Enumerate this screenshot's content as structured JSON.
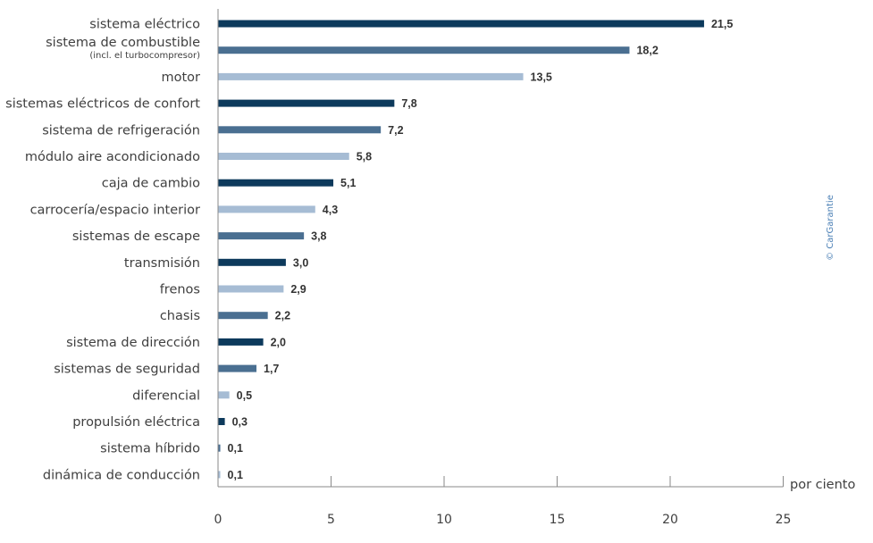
{
  "chart_data": {
    "type": "bar",
    "orientation": "horizontal",
    "categories": [
      "sistema eléctrico",
      "sistema de combustible",
      "motor",
      "sistemas eléctricos de confort",
      "sistema de refrigeración",
      "módulo aire acondicionado",
      "caja de cambio",
      "carrocería/espacio interior",
      "sistemas de escape",
      "transmisión",
      "frenos",
      "chasis",
      "sistema de dirección",
      "sistemas de seguridad",
      "diferencial",
      "propulsión eléctrica",
      "sistema híbrido",
      "dinámica de conducción"
    ],
    "category_subtitles": [
      "",
      "(incl. el turbocompresor)",
      "",
      "",
      "",
      "",
      "",
      "",
      "",
      "",
      "",
      "",
      "",
      "",
      "",
      "",
      "",
      ""
    ],
    "values": [
      21.5,
      18.2,
      13.5,
      7.8,
      7.2,
      5.8,
      5.1,
      4.3,
      3.8,
      3.0,
      2.9,
      2.2,
      2.0,
      1.7,
      0.5,
      0.3,
      0.1,
      0.1
    ],
    "value_labels": [
      "21,5",
      "18,2",
      "13,5",
      "7,8",
      "7,2",
      "5,8",
      "5,1",
      "4,3",
      "3,8",
      "3,0",
      "2,9",
      "2,2",
      "2,0",
      "1,7",
      "0,5",
      "0,3",
      "0,1",
      "0,1"
    ],
    "bar_colors": [
      "#0d3a5c",
      "#4a6f91",
      "#a6bcd4",
      "#0d3a5c",
      "#4a6f91",
      "#a6bcd4",
      "#0d3a5c",
      "#a6bcd4",
      "#4a6f91",
      "#0d3a5c",
      "#a6bcd4",
      "#4a6f91",
      "#0d3a5c",
      "#4a6f91",
      "#a6bcd4",
      "#0d3a5c",
      "#4a6f91",
      "#a6bcd4"
    ],
    "x_ticks": [
      0,
      5,
      10,
      15,
      20,
      25
    ],
    "xlim": [
      0,
      25
    ],
    "xlabel": "por ciento",
    "title": "",
    "ylabel": "",
    "grid": false,
    "legend": "none"
  },
  "copyright": "© CarGarantie"
}
